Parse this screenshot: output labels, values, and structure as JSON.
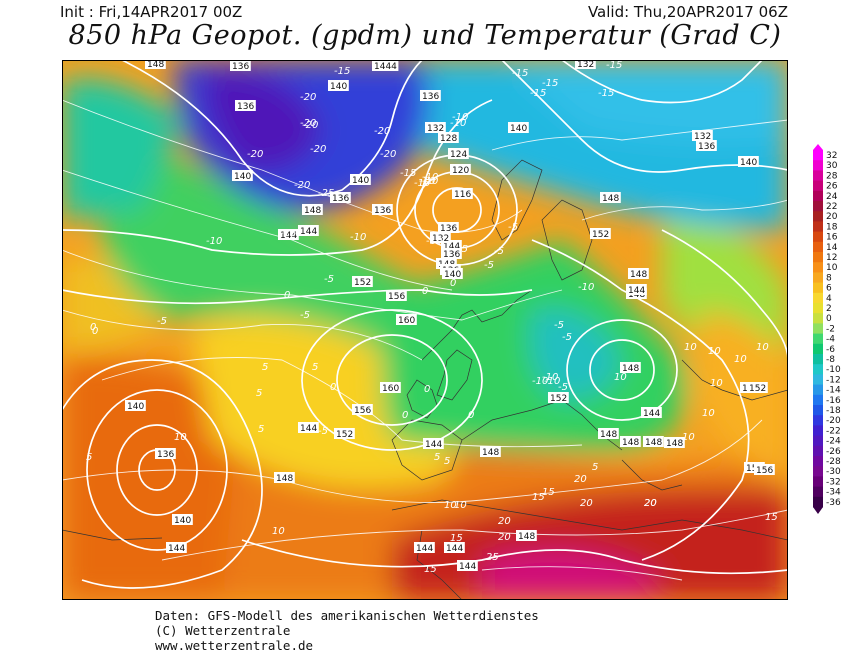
{
  "header": {
    "init": "Init : Fri,14APR2017 00Z",
    "valid": "Valid: Thu,20APR2017 06Z",
    "title": "850 hPa Geopot. (gpdm) und Temperatur (Grad C)"
  },
  "footer": {
    "line1": "Daten: GFS-Modell des amerikanischen Wetterdienstes",
    "line2": "(C) Wetterzentrale",
    "line3": "www.wetterzentrale.de"
  },
  "legend": {
    "labels": [
      "32",
      "30",
      "28",
      "26",
      "24",
      "22",
      "20",
      "18",
      "16",
      "14",
      "12",
      "10",
      "8",
      "6",
      "4",
      "2",
      "0",
      "-2",
      "-4",
      "-6",
      "-8",
      "-10",
      "-12",
      "-14",
      "-16",
      "-18",
      "-20",
      "-22",
      "-24",
      "-26",
      "-28",
      "-30",
      "-32",
      "-34",
      "-36"
    ],
    "colors": [
      "#ff00ff",
      "#f000d0",
      "#d8009c",
      "#c8007a",
      "#b00058",
      "#a0103a",
      "#a82020",
      "#c03018",
      "#d84810",
      "#e86010",
      "#f07810",
      "#f89018",
      "#f8a820",
      "#f8c020",
      "#f8d830",
      "#e8e030",
      "#c8e040",
      "#90e060",
      "#40d870",
      "#10c870",
      "#10c0a0",
      "#20c8c8",
      "#30b8e0",
      "#2898e8",
      "#2078f0",
      "#2058e8",
      "#3038e0",
      "#4020d0",
      "#5018c0",
      "#6010b0",
      "#7008a0",
      "#780890",
      "#680078",
      "#500060",
      "#380048"
    ]
  },
  "geopotential_labels": [
    {
      "v": "148"
    },
    {
      "v": "136"
    },
    {
      "v": "1444"
    },
    {
      "v": "132"
    },
    {
      "v": "140"
    },
    {
      "v": "136"
    },
    {
      "v": "136"
    },
    {
      "v": "132"
    },
    {
      "v": "128"
    },
    {
      "v": "124"
    },
    {
      "v": "140"
    },
    {
      "v": "132"
    },
    {
      "v": "136"
    },
    {
      "v": "140"
    },
    {
      "v": "140"
    },
    {
      "v": "120"
    },
    {
      "v": "116"
    },
    {
      "v": "140"
    },
    {
      "v": "136"
    },
    {
      "v": "136"
    },
    {
      "v": "144"
    },
    {
      "v": "148"
    },
    {
      "v": "144"
    },
    {
      "v": "148"
    },
    {
      "v": "144"
    },
    {
      "v": "148"
    },
    {
      "v": "132"
    },
    {
      "v": "136"
    },
    {
      "v": "136"
    },
    {
      "v": "136"
    },
    {
      "v": "140"
    },
    {
      "v": "148"
    },
    {
      "v": "152"
    },
    {
      "v": "148"
    },
    {
      "v": "144"
    },
    {
      "v": "152"
    },
    {
      "v": "156"
    },
    {
      "v": "160"
    },
    {
      "v": "160"
    },
    {
      "v": "156"
    },
    {
      "v": "152"
    },
    {
      "v": "152"
    },
    {
      "v": "144"
    },
    {
      "v": "148"
    },
    {
      "v": "148"
    },
    {
      "v": "148"
    },
    {
      "v": "144"
    },
    {
      "v": "140"
    },
    {
      "v": "136"
    },
    {
      "v": "140"
    },
    {
      "v": "144"
    },
    {
      "v": "148"
    },
    {
      "v": "144"
    },
    {
      "v": "144"
    },
    {
      "v": "148"
    },
    {
      "v": "144"
    },
    {
      "v": "156"
    },
    {
      "v": "156"
    },
    {
      "v": "152"
    },
    {
      "v": "148"
    },
    {
      "v": "148"
    },
    {
      "v": "148"
    },
    {
      "v": "144"
    },
    {
      "v": "152"
    }
  ],
  "temperature_labels": [
    {
      "v": "-15"
    },
    {
      "v": "-20"
    },
    {
      "v": "-20"
    },
    {
      "v": "-15"
    },
    {
      "v": "-15"
    },
    {
      "v": "-15"
    },
    {
      "v": "-15"
    },
    {
      "v": "-15"
    },
    {
      "v": "-20"
    },
    {
      "v": "-20"
    },
    {
      "v": "-20"
    },
    {
      "v": "-20"
    },
    {
      "v": "-20"
    },
    {
      "v": "-25"
    },
    {
      "v": "-15"
    },
    {
      "v": "-10"
    },
    {
      "v": "-10"
    },
    {
      "v": "-10"
    },
    {
      "v": "-10"
    },
    {
      "v": "-15"
    },
    {
      "v": "-20"
    },
    {
      "v": "-10"
    },
    {
      "v": "-10"
    },
    {
      "v": "-15"
    },
    {
      "v": "-10"
    },
    {
      "v": "-5"
    },
    {
      "v": "-5"
    },
    {
      "v": "-5"
    },
    {
      "v": "-5"
    },
    {
      "v": "-10"
    },
    {
      "v": "0"
    },
    {
      "v": "-5"
    },
    {
      "v": "-5"
    },
    {
      "v": "0"
    },
    {
      "v": "-10"
    },
    {
      "v": "-5"
    },
    {
      "v": "-5"
    },
    {
      "v": "0"
    },
    {
      "v": "0"
    },
    {
      "v": "5"
    },
    {
      "v": "5"
    },
    {
      "v": "5"
    },
    {
      "v": "5"
    },
    {
      "v": "0"
    },
    {
      "v": "5"
    },
    {
      "v": "-5"
    },
    {
      "v": "-5"
    },
    {
      "v": "-10"
    },
    {
      "v": "-10"
    },
    {
      "v": "0"
    },
    {
      "v": "5"
    },
    {
      "v": "10"
    },
    {
      "v": "10"
    },
    {
      "v": "10"
    },
    {
      "v": "10"
    },
    {
      "v": "10"
    },
    {
      "v": "10"
    },
    {
      "v": "10"
    },
    {
      "v": "10"
    },
    {
      "v": "10"
    },
    {
      "v": "5"
    },
    {
      "v": "5"
    },
    {
      "v": "10"
    },
    {
      "v": "15"
    },
    {
      "v": "20"
    },
    {
      "v": "20"
    },
    {
      "v": "15"
    },
    {
      "v": "20"
    },
    {
      "v": "20"
    },
    {
      "v": "20"
    },
    {
      "v": "25"
    },
    {
      "v": "15"
    },
    {
      "v": "15"
    },
    {
      "v": "20"
    },
    {
      "v": "15"
    },
    {
      "v": "10"
    },
    {
      "v": "0"
    },
    {
      "v": "0"
    },
    {
      "v": "-10"
    },
    {
      "v": "-5"
    },
    {
      "v": "0"
    },
    {
      "v": "10"
    }
  ]
}
